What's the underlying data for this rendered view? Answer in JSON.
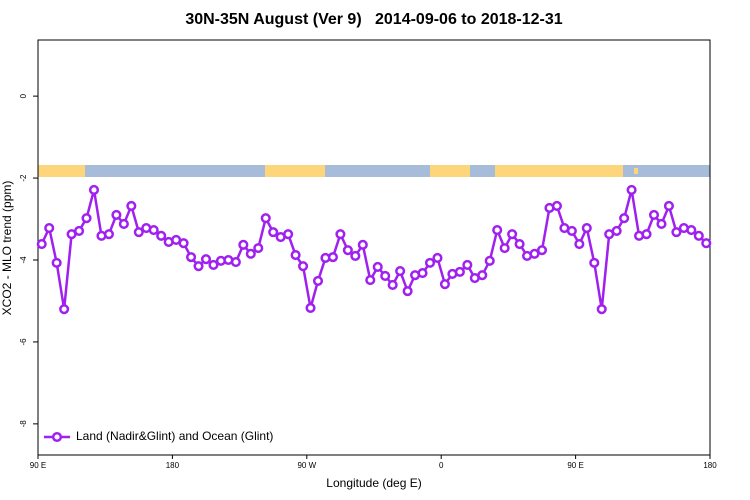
{
  "chart_data": {
    "type": "line",
    "title": "30N-35N August (Ver 9)   2014-09-06 to 2018-12-31",
    "xlabel": "Longitude (deg E)",
    "ylabel": "XCO2 - MLO trend (ppm)",
    "xlim": [
      90,
      540
    ],
    "ylim": [
      -8.76,
      1.37
    ],
    "xticks": [
      {
        "value": 90,
        "label": "90 E"
      },
      180,
      {
        "value": 270,
        "label": "90 W"
      },
      {
        "value": 360,
        "label": "0"
      },
      {
        "value": 450,
        "label": "90 E"
      },
      {
        "value": 540,
        "label": "180"
      }
    ],
    "yticks": [
      0,
      -2,
      -4,
      -6,
      -8
    ],
    "legend": "bottom-left",
    "x": [
      92.5,
      97.5,
      102.5,
      107.5,
      112.5,
      117.5,
      122.5,
      127.5,
      132.5,
      137.5,
      142.5,
      147.5,
      152.5,
      157.5,
      162.5,
      167.5,
      172.5,
      177.5,
      182.5,
      187.5,
      192.5,
      197.5,
      202.5,
      207.5,
      212.5,
      217.5,
      222.5,
      227.5,
      232.5,
      237.5,
      242.5,
      247.5,
      252.5,
      257.5,
      262.5,
      267.5,
      272.5,
      277.5,
      282.5,
      287.5,
      292.5,
      297.5,
      302.5,
      307.5,
      312.5,
      317.5,
      322.5,
      327.5,
      332.5,
      337.5,
      342.5,
      347.5,
      352.5,
      357.5,
      362.5,
      367.5,
      372.5,
      377.5,
      382.5,
      387.5,
      392.5,
      397.5,
      402.5,
      407.5,
      412.5,
      417.5,
      422.5,
      427.5,
      432.5,
      437.5,
      442.5,
      447.5,
      452.5,
      457.5,
      462.5,
      467.5,
      472.5,
      477.5,
      482.5,
      487.5,
      492.5,
      497.5,
      502.5,
      507.5,
      512.5,
      517.5,
      522.5,
      527.5,
      532.5,
      537.5
    ],
    "series": [
      {
        "name": "Land (Nadir&Glint) and Ocean (Glint)",
        "color": "#a020f0",
        "values": [
          -3.61,
          -3.22,
          -4.07,
          -5.2,
          -3.37,
          -3.29,
          -2.98,
          -2.29,
          -3.41,
          -3.37,
          -2.9,
          -3.12,
          -2.68,
          -3.32,
          -3.22,
          -3.27,
          -3.41,
          -3.56,
          -3.51,
          -3.59,
          -3.93,
          -4.15,
          -3.98,
          -4.12,
          -4.02,
          -4.0,
          -4.05,
          -3.63,
          -3.85,
          -3.71,
          -2.98,
          -3.32,
          -3.44,
          -3.37,
          -3.88,
          -4.15,
          -5.17,
          -4.51,
          -3.95,
          -3.93,
          -3.37,
          -3.76,
          -3.9,
          -3.63,
          -4.49,
          -4.17,
          -4.39,
          -4.61,
          -4.27,
          -4.76,
          -4.37,
          -4.32,
          -4.07,
          -3.95,
          -4.59,
          -4.34,
          -4.29,
          -4.12,
          -4.44,
          -4.37,
          -4.02,
          -3.27,
          -3.71,
          -3.37,
          -3.61,
          -3.9,
          -3.85,
          -3.76,
          -2.73,
          -2.68,
          -3.22,
          -3.29,
          -3.61,
          -3.22,
          -4.07,
          -5.2,
          -3.37,
          -3.29,
          -2.98,
          -2.29,
          -3.41,
          -3.37,
          -2.9,
          -3.12,
          -2.68,
          -3.32,
          -3.22,
          -3.27,
          -3.41,
          -3.59
        ]
      }
    ]
  }
}
